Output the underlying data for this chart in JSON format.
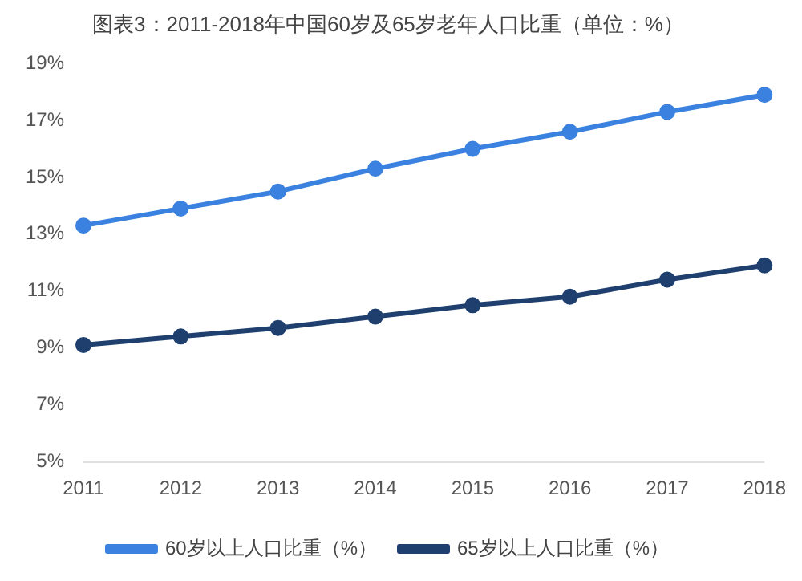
{
  "chart_data": {
    "type": "line",
    "title": "图表3：2011-2018年中国60岁及65岁老年人口比重（单位：%）",
    "categories": [
      "2011",
      "2012",
      "2013",
      "2014",
      "2015",
      "2016",
      "2017",
      "2018"
    ],
    "series": [
      {
        "name": "60岁以上人口比重（%）",
        "color": "#3b82e0",
        "values": [
          13.3,
          13.9,
          14.5,
          15.3,
          16.0,
          16.6,
          17.3,
          17.9
        ]
      },
      {
        "name": "65岁以上人口比重（%）",
        "color": "#1f3f6e",
        "values": [
          9.1,
          9.4,
          9.7,
          10.1,
          10.5,
          10.8,
          11.4,
          11.9
        ]
      }
    ],
    "ylim": [
      5,
      19
    ],
    "yticks": [
      {
        "value": 5,
        "label": "5%"
      },
      {
        "value": 7,
        "label": "7%"
      },
      {
        "value": 9,
        "label": "9%"
      },
      {
        "value": 11,
        "label": "11%"
      },
      {
        "value": 13,
        "label": "13%"
      },
      {
        "value": 15,
        "label": "15%"
      },
      {
        "value": 17,
        "label": "17%"
      },
      {
        "value": 19,
        "label": "19%"
      }
    ],
    "grid": false,
    "legend": "bottom",
    "marker": "circle",
    "line_style": "solid"
  }
}
